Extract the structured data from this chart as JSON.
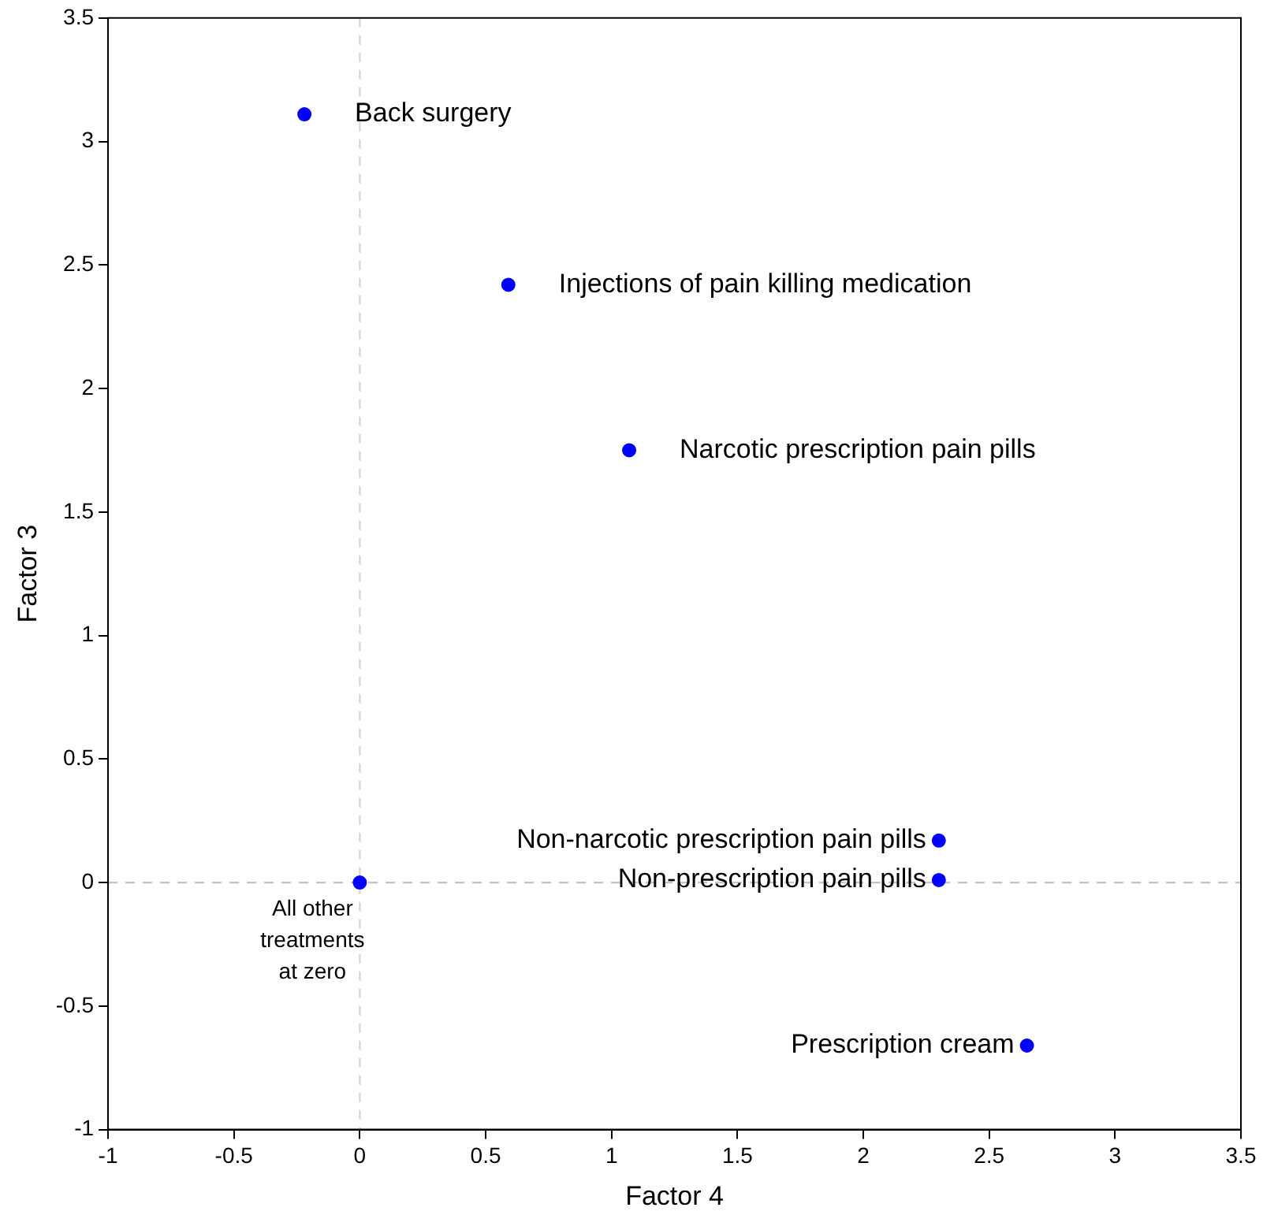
{
  "chart_data": {
    "type": "scatter",
    "xlabel": "Factor 4",
    "ylabel": "Factor 3",
    "color": "#0000ff",
    "marker": "circle",
    "grid": false,
    "legend": false,
    "x": [
      -0.22,
      0.59,
      1.07,
      2.3,
      2.3,
      2.65,
      0
    ],
    "values": [
      3.11,
      2.42,
      1.75,
      0.17,
      0.01,
      -0.66,
      0
    ],
    "xlim": [
      -1,
      3.5
    ],
    "xticks": [
      -1,
      -0.5,
      0,
      0.5,
      1,
      1.5,
      2,
      2.5,
      3,
      3.5
    ],
    "ylim": [
      -1,
      3.5
    ],
    "yticks": [
      -1,
      -0.5,
      0,
      0.5,
      1,
      1.5,
      2,
      2.5,
      3,
      3.5
    ],
    "ref_lines": [
      {
        "axis": "x",
        "value": 0,
        "color": "#d8d8d8",
        "line_style": "dashed"
      },
      {
        "axis": "y",
        "value": 0,
        "color": "#c4c4c4",
        "line_style": "dashed"
      }
    ],
    "annotations": [
      {
        "text": "Back surgery",
        "x": -0.22,
        "y": 3.11
      },
      {
        "text": "Injections of pain killing medication",
        "x": 0.59,
        "y": 2.42
      },
      {
        "text": "Narcotic prescription pain pills",
        "x": 1.07,
        "y": 1.75
      },
      {
        "text": "Non-narcotic prescription pain pills",
        "x": 2.3,
        "y": 0.17
      },
      {
        "text": "Non-prescription pain pills",
        "x": 2.3,
        "y": 0.01
      },
      {
        "text": "Prescription cream",
        "x": 2.65,
        "y": -0.66
      },
      {
        "text": "All other\ntreatments\nat zero",
        "x": 0,
        "y": 0
      }
    ]
  }
}
